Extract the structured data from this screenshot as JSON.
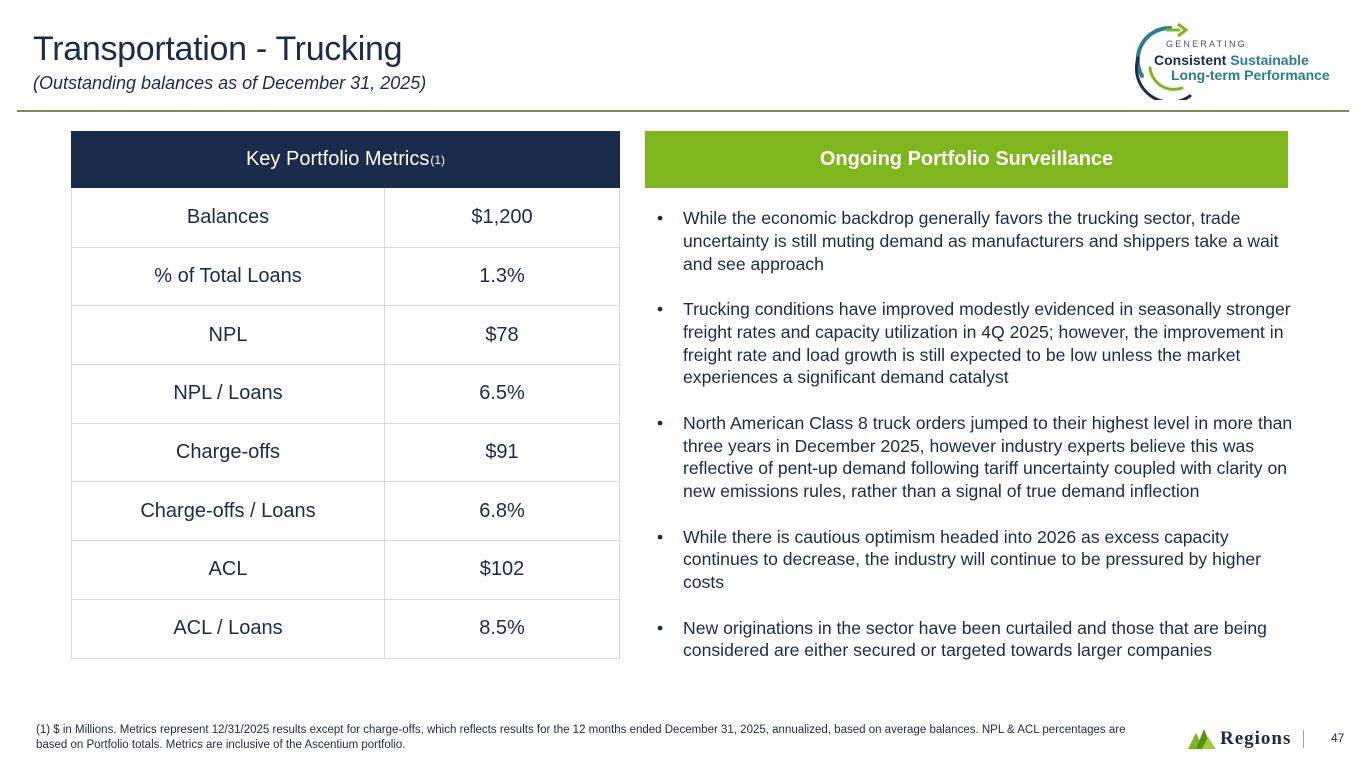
{
  "header": {
    "title": "Transportation - Trucking",
    "subtitle": "(Outstanding balances as of December 31, 2025)"
  },
  "logo": {
    "generating": "GENERATING",
    "consistent": "Consistent",
    "sustainable": "Sustainable",
    "long_term": "Long-term Performance"
  },
  "metrics": {
    "header": "Key Portfolio Metrics",
    "header_note": "(1)",
    "rows": [
      {
        "label": "Balances",
        "value": "$1,200"
      },
      {
        "label": "% of Total Loans",
        "value": "1.3%"
      },
      {
        "label": "NPL",
        "value": "$78"
      },
      {
        "label": "NPL / Loans",
        "value": "6.5%"
      },
      {
        "label": "Charge-offs",
        "value": "$91"
      },
      {
        "label": "Charge-offs / Loans",
        "value": "6.8%"
      },
      {
        "label": "ACL",
        "value": "$102"
      },
      {
        "label": "ACL / Loans",
        "value": "8.5%"
      }
    ]
  },
  "surveillance": {
    "header": "Ongoing Portfolio Surveillance",
    "bullets": [
      "While the economic backdrop generally favors the trucking sector, trade uncertainty is still muting demand as manufacturers and shippers take a wait and see approach",
      "Trucking conditions have improved modestly evidenced in seasonally stronger freight rates and capacity utilization in 4Q 2025; however, the improvement in freight rate and load growth is still expected to be low unless the market experiences a significant demand catalyst",
      "North American Class 8 truck orders jumped to their highest level in more than three years in December 2025, however industry experts believe this was reflective of pent-up demand following tariff uncertainty coupled with clarity on new emissions rules, rather than a signal of true demand inflection",
      "While there is cautious optimism headed into 2026 as excess capacity continues to decrease, the industry will continue to be pressured by higher costs",
      "New originations in the sector have been curtailed and those that are being considered are either secured or targeted towards larger companies"
    ]
  },
  "footnote": "(1) $ in Millions. Metrics represent 12/31/2025 results except for charge-offs, which reflects results for the 12 months ended December 31, 2025, annualized, based on average balances. NPL & ACL percentages are based on Portfolio totals. Metrics are inclusive of the Ascentium portfolio.",
  "brand": {
    "name": "Regions",
    "icon": "regions-pyramid-icon",
    "accent_navy": "#1b2b4b",
    "accent_green": "#7fb51d"
  },
  "page_number": "47"
}
